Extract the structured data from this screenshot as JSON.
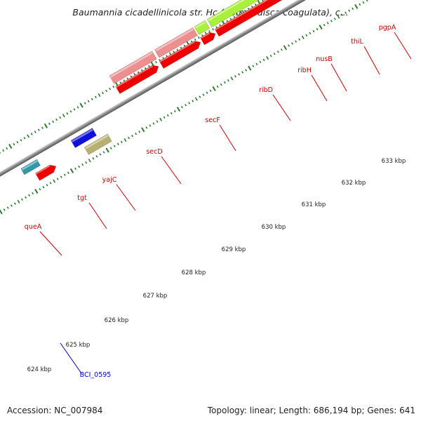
{
  "title": "Baumannia cicadellinicola str. Hc (Homalodisca coagulata), c...",
  "footer": {
    "accession": "Accession: NC_007984",
    "summary": "Topology: linear; Length: 686,194 bp; Genes: 641"
  },
  "colors": {
    "cds": "#ee0000",
    "gene_pink": "#ee8f8f",
    "gene_green": "#a8f03a",
    "gene_blue": "#1010dd",
    "gene_orange": "#ff9900",
    "gene_purple": "#8a74dd",
    "gene_olive": "#b8b070",
    "gene_teal": "#3399aa",
    "label_red": "#cc0000",
    "label_blue": "#0000cc",
    "tick_green": "#2d7a2d",
    "axis": "#888888"
  },
  "scale_labels": [
    "624 kbp",
    "625 kbp",
    "626 kbp",
    "627 kbp",
    "628 kbp",
    "629 kbp",
    "630 kbp",
    "631 kbp",
    "632 kbp",
    "633 kbp"
  ],
  "gene_labels": [
    {
      "name": "queA",
      "color": "red"
    },
    {
      "name": "tgt",
      "color": "red"
    },
    {
      "name": "yajC",
      "color": "red"
    },
    {
      "name": "secD",
      "color": "red"
    },
    {
      "name": "secF",
      "color": "red"
    },
    {
      "name": "ribD",
      "color": "red"
    },
    {
      "name": "ribH",
      "color": "red"
    },
    {
      "name": "nusB",
      "color": "red"
    },
    {
      "name": "thiL",
      "color": "red"
    },
    {
      "name": "pgpA",
      "color": "red"
    },
    {
      "name": "BCI_0595",
      "color": "blue"
    }
  ]
}
